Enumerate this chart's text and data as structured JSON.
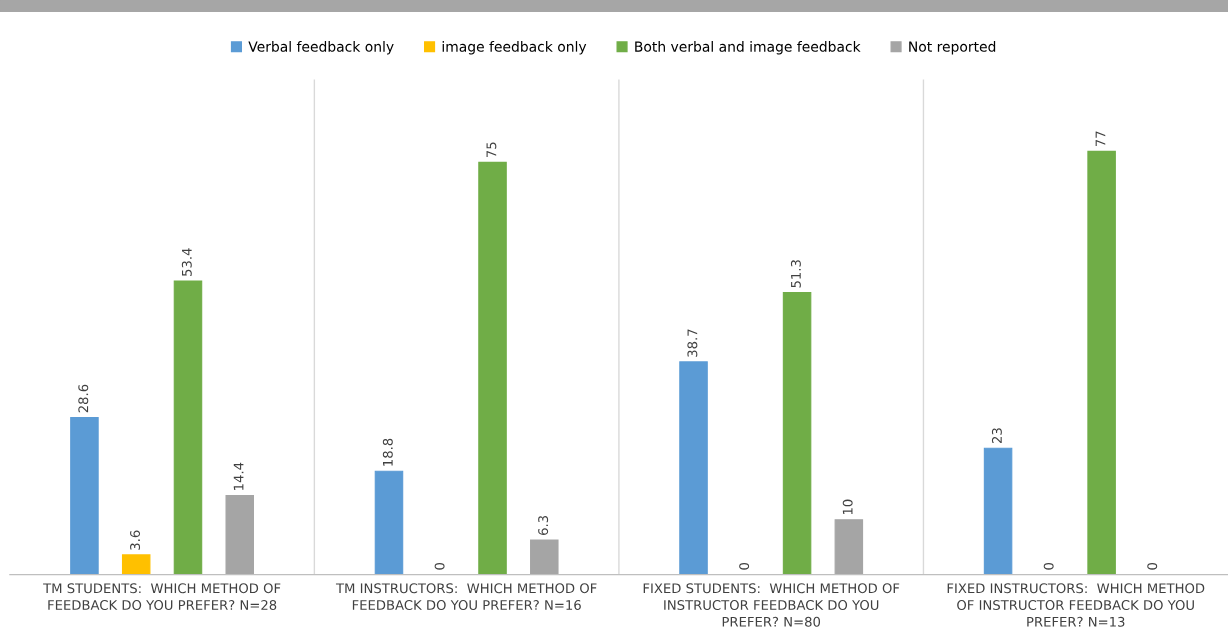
{
  "chart_data": {
    "type": "bar",
    "categories": [
      "TM STUDENTS:  WHICH METHOD OF\nFEEDBACK DO YOU PREFER? N=28",
      "TM INSTRUCTORS:  WHICH METHOD OF\nFEEDBACK DO YOU PREFER? N=16",
      "FIXED STUDENTS:  WHICH METHOD OF\nINSTRUCTOR FEEDBACK DO YOU\nPREFER? N=80",
      "FIXED INSTRUCTORS:  WHICH METHOD\nOF INSTRUCTOR FEEDBACK DO YOU\nPREFER? N=13"
    ],
    "series": [
      {
        "name": "Verbal feedback only",
        "color": "#5b9bd5",
        "values": [
          28.6,
          18.8,
          38.7,
          23
        ]
      },
      {
        "name": "image feedback only",
        "color": "#ffc000",
        "values": [
          3.6,
          0,
          0,
          0
        ]
      },
      {
        "name": "Both verbal and image feedback",
        "color": "#70ad47",
        "values": [
          53.4,
          75,
          51.3,
          77
        ]
      },
      {
        "name": "Not reported",
        "color": "#a5a5a5",
        "values": [
          14.4,
          6.3,
          10,
          0
        ]
      }
    ],
    "data_labels": true,
    "legend": "top",
    "grid": "x",
    "tick_labels": "x"
  }
}
